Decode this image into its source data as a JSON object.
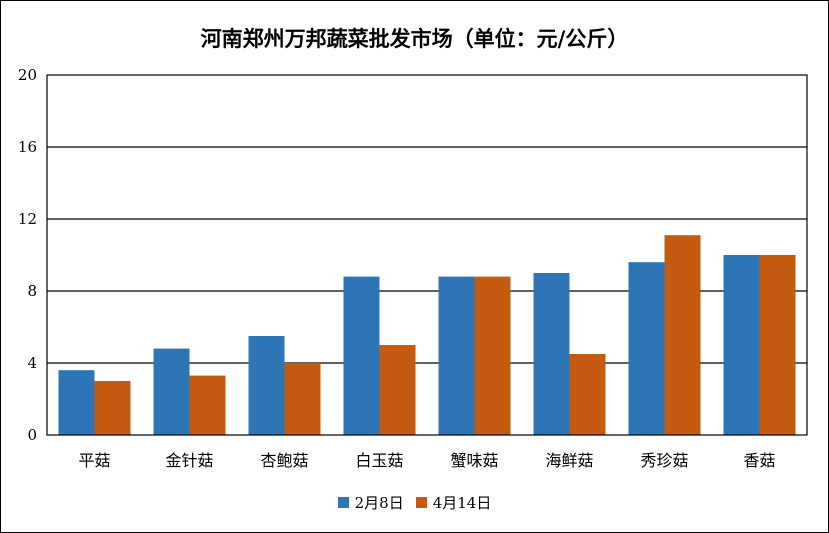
{
  "chart_data": {
    "type": "bar",
    "title": "河南郑州万邦蔬菜批发市场（单位：元/公斤）",
    "xlabel": "",
    "ylabel": "",
    "categories": [
      "平菇",
      "金针菇",
      "杏鲍菇",
      "白玉菇",
      "蟹味菇",
      "海鲜菇",
      "秀珍菇",
      "香菇"
    ],
    "series": [
      {
        "name": "2月8日",
        "color": "#2E75B6",
        "values": [
          3.6,
          4.8,
          5.5,
          8.8,
          8.8,
          9.0,
          9.6,
          10.0
        ]
      },
      {
        "name": "4月14日",
        "color": "#C55A11",
        "values": [
          3.0,
          3.3,
          4.0,
          5.0,
          8.8,
          4.5,
          11.1,
          10.0
        ]
      }
    ],
    "ylim": [
      0,
      20
    ],
    "yticks": [
      "0",
      "4",
      "8",
      "12",
      "16",
      "20"
    ],
    "grid": true,
    "legend_position": "bottom"
  }
}
